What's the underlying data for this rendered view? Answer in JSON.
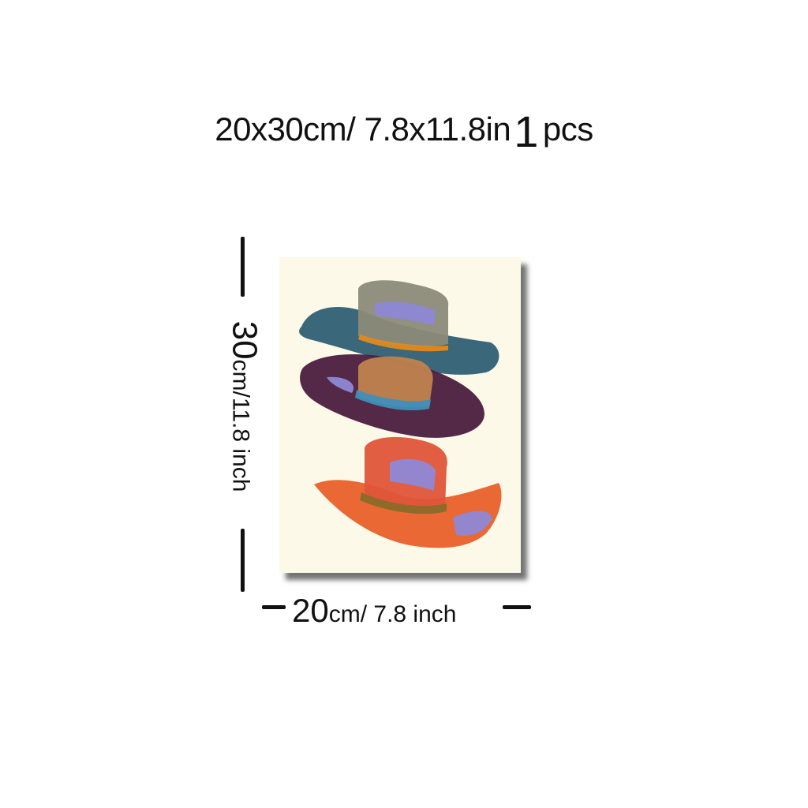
{
  "title": {
    "size_text": "20x30cm/ 7.8x11.8in",
    "qty_number": "1",
    "qty_unit": "pcs"
  },
  "height_label": {
    "value": "30",
    "unit_text": "cm/11.8 inch"
  },
  "width_label": {
    "value": "20",
    "unit_text": "cm/ 7.8 inch"
  },
  "artwork": {
    "subject": "three stacked cowboy hats, expressive painted style",
    "colors": {
      "background": "#fdf9e9",
      "top_hat_crown": "#8c8a78",
      "top_hat_brim": "#2f5f74",
      "top_hat_band": "#e08a1e",
      "middle_hat_brim": "#4a1d3e",
      "middle_hat_crown": "#c0824e",
      "middle_hat_band": "#3f8fb8",
      "bottom_hat_crown": "#e0553a",
      "bottom_hat_brim": "#e8602a",
      "bottom_hat_band": "#8a6b2a",
      "accent_lavender": "#8e88d6"
    }
  }
}
